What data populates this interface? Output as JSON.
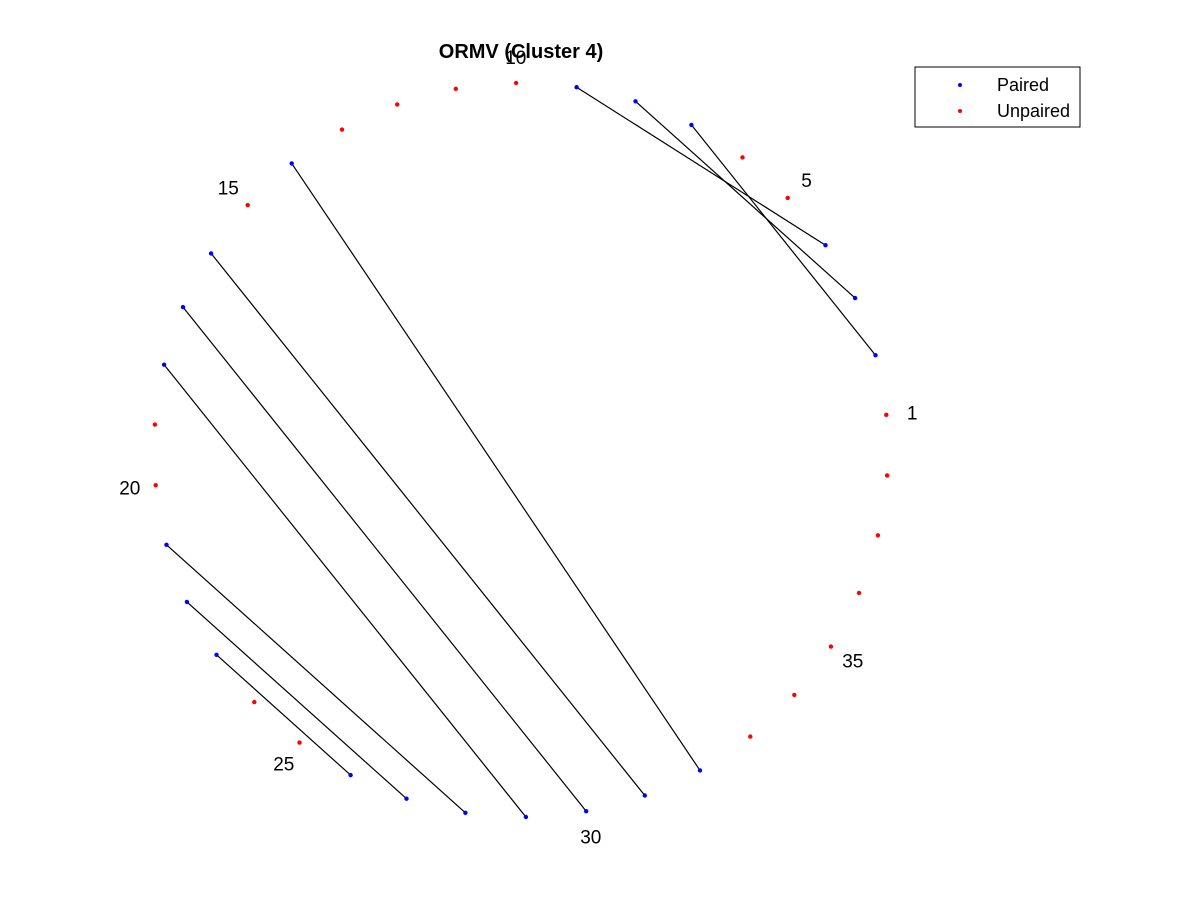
{
  "chart_data": {
    "type": "scatter",
    "title": "ORMV (Cluster 4)",
    "node_count": 38,
    "numbered_labels": [
      "1",
      "5",
      "10",
      "15",
      "20",
      "25",
      "30",
      "35"
    ],
    "pairs": [
      [
        2,
        7
      ],
      [
        3,
        8
      ],
      [
        4,
        9
      ],
      [
        14,
        32
      ],
      [
        16,
        31
      ],
      [
        17,
        30
      ],
      [
        18,
        29
      ],
      [
        21,
        28
      ],
      [
        22,
        27
      ],
      [
        23,
        26
      ]
    ],
    "paired_nodes": [
      2,
      3,
      4,
      7,
      8,
      9,
      14,
      16,
      17,
      18,
      21,
      22,
      23,
      26,
      27,
      28,
      29,
      30,
      31,
      32
    ],
    "unpaired_nodes": [
      1,
      5,
      6,
      10,
      11,
      12,
      13,
      15,
      19,
      20,
      24,
      25,
      33,
      34,
      35,
      36,
      37,
      38
    ],
    "legend": {
      "placement": "top-right",
      "entries": [
        {
          "label": "Paired",
          "color": "#0000ff"
        },
        {
          "label": "Unpaired",
          "color": "#ff0000"
        }
      ]
    },
    "colors": {
      "paired": "#0000ff",
      "unpaired": "#ff0000",
      "link": "#000000"
    }
  }
}
